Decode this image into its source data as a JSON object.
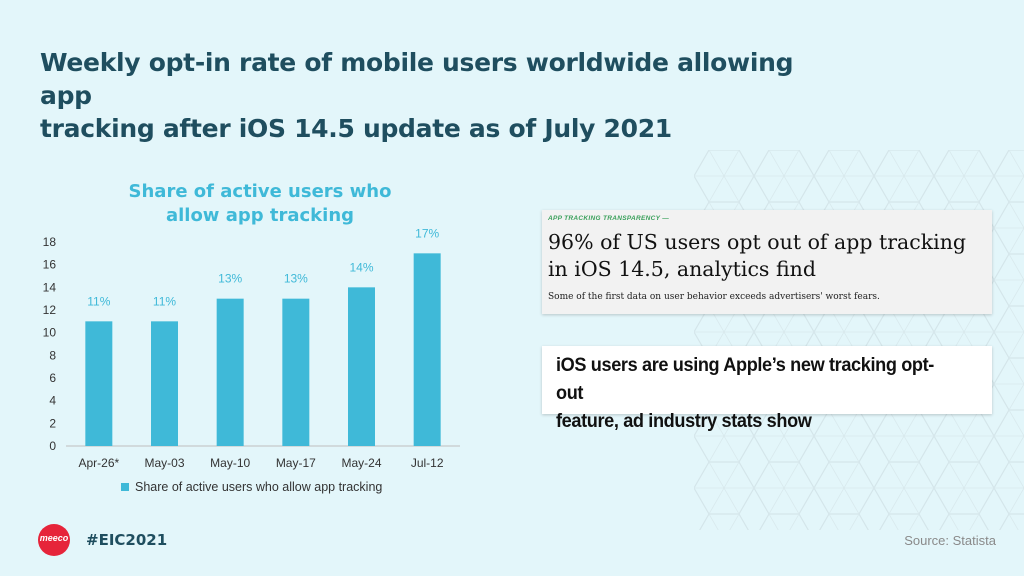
{
  "slide": {
    "title_line1": "Weekly opt-in rate of mobile users worldwide allowing app",
    "title_line2": "tracking after iOS 14.5 update as of July 2021",
    "hashtag": "#EIC2021",
    "source": "Source: Statista",
    "logo_text": "meeco",
    "colors": {
      "background": "#e3f6fa",
      "title": "#1f4e5f",
      "bar": "#3fb9d8",
      "logo": "#e6243a"
    }
  },
  "chart_data": {
    "type": "bar",
    "title_line1": "Share of active users who",
    "title_line2": "allow app tracking",
    "categories": [
      "Apr-26*",
      "May-03",
      "May-10",
      "May-17",
      "May-24",
      "Jul-12"
    ],
    "series": [
      {
        "name": "Share of active users who allow app tracking",
        "values": [
          11,
          11,
          13,
          13,
          14,
          17
        ],
        "labels": [
          "11%",
          "11%",
          "13%",
          "13%",
          "14%",
          "17%"
        ]
      }
    ],
    "yticks": [
      0,
      2,
      4,
      6,
      8,
      10,
      12,
      14,
      16,
      18
    ],
    "ylim": [
      0,
      18
    ],
    "grid": false,
    "legend": "bottom"
  },
  "articles": [
    {
      "kicker": "APP TRACKING TRANSPARENCY —",
      "headline_line1": "96% of US users opt out of app tracking",
      "headline_line2": "in iOS 14.5, analytics find",
      "subhead": "Some of the first data on user behavior exceeds advertisers' worst fears."
    },
    {
      "headline_line1": "iOS users are using Apple’s new tracking opt-out",
      "headline_line2": "feature, ad industry stats show"
    }
  ]
}
